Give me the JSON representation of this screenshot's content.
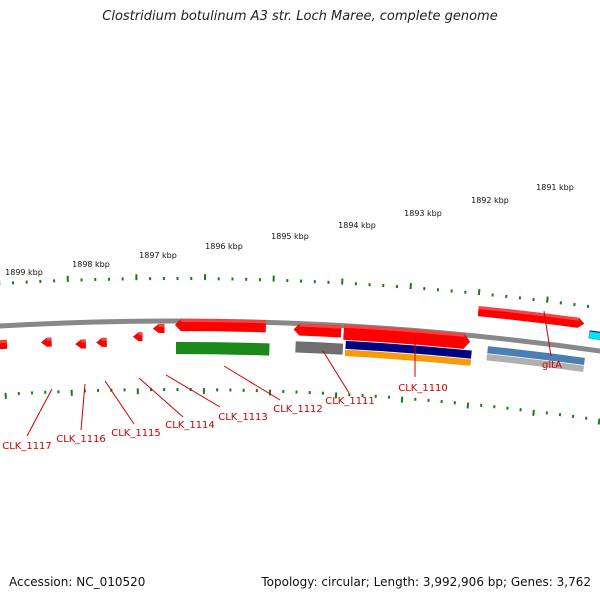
{
  "title": "Clostridium botulinum A3 str. Loch Maree, complete genome",
  "footer": {
    "accession": "Accession: NC_010520",
    "stats": "Topology: circular; Length: 3,992,906 bp; Genes: 3,762"
  },
  "colors": {
    "gene_red": "#ff0000",
    "gene_green": "#1a8a1a",
    "gene_gray": "#6e6e6e",
    "navy": "#000080",
    "orange": "#ff9900",
    "steel_blue": "#4a7fb5",
    "light_gray": "#b0b0b0",
    "blue": "#0000ff",
    "cyan": "#00e5ee",
    "backbone": "#888888",
    "tick": "#1a7a1a",
    "label": "#cc0000"
  },
  "kbp_labels": [
    "1891 kbp",
    "1892 kbp",
    "1893 kbp",
    "1894 kbp",
    "1895 kbp",
    "1896 kbp",
    "1897 kbp",
    "1898 kbp",
    "1899 kbp"
  ],
  "genes": [
    {
      "name": "gltA"
    },
    {
      "name": "CLK_1110"
    },
    {
      "name": "CLK_1111"
    },
    {
      "name": "CLK_1112"
    },
    {
      "name": "CLK_1113"
    },
    {
      "name": "CLK_1114"
    },
    {
      "name": "CLK_1115"
    },
    {
      "name": "CLK_1116"
    },
    {
      "name": "CLK_1117"
    }
  ]
}
